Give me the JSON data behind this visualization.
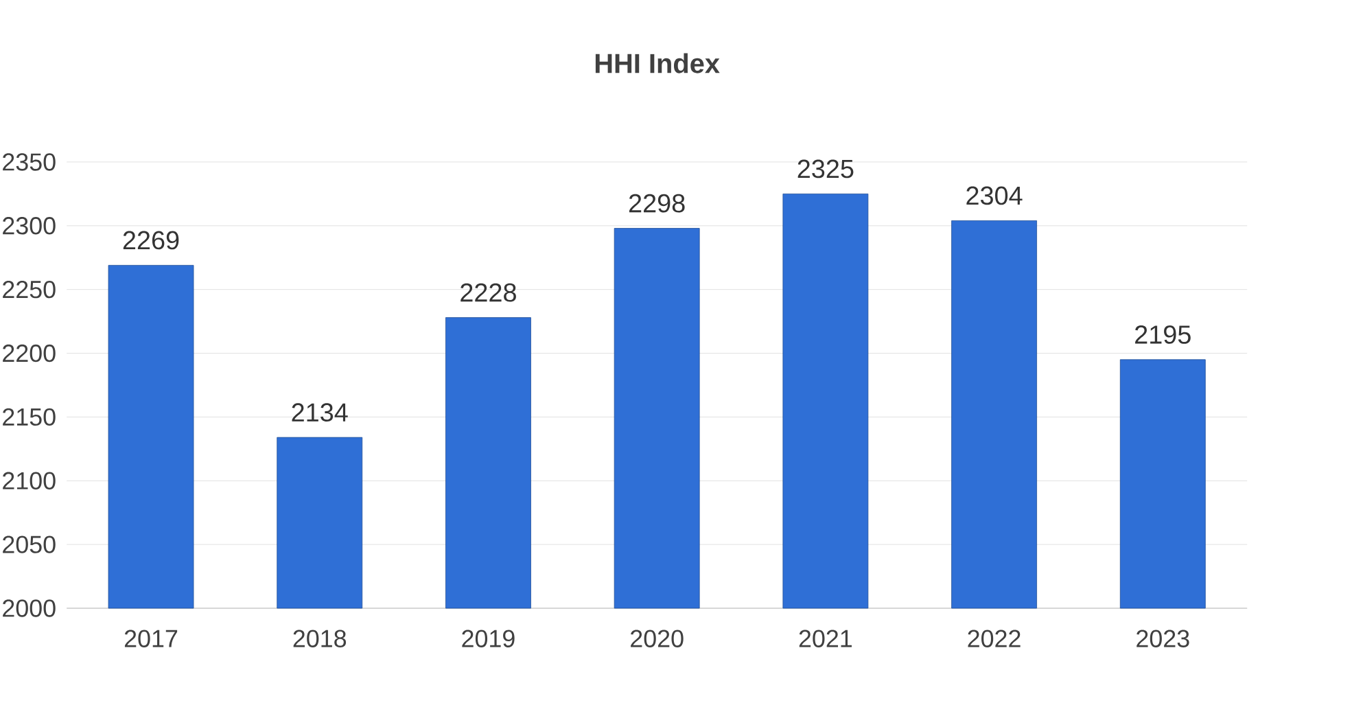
{
  "chart_data": {
    "type": "bar",
    "title": "**HHI Index**",
    "categories": [
      "2017",
      "2018",
      "2019",
      "2020",
      "2021",
      "2022",
      "2023"
    ],
    "values": [
      2269,
      2134,
      2228,
      2298,
      2325,
      2304,
      2195
    ],
    "color": "#2f6fd6",
    "ylim": [
      2000,
      2350
    ],
    "yticks": [
      2000,
      2050,
      2100,
      2150,
      2200,
      2250,
      2300,
      2350
    ],
    "grid": "y",
    "data_labels": true
  }
}
